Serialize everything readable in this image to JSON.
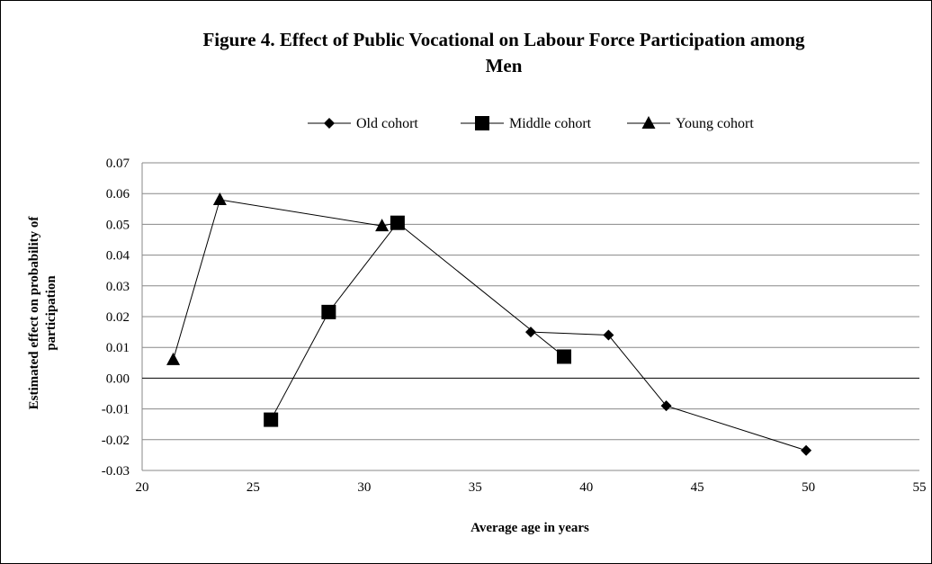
{
  "chart_data": {
    "type": "line",
    "title_line1": "Figure 4. Effect of Public Vocational on Labour Force Participation among",
    "title_line2": "Men",
    "xlabel": "Average age in years",
    "ylabel_line1": "Estimated effect on probability of",
    "ylabel_line2": "participation",
    "xlim": [
      20,
      55
    ],
    "ylim": [
      -0.03,
      0.07
    ],
    "x_ticks": [
      "20",
      "25",
      "30",
      "35",
      "40",
      "45",
      "50",
      "55"
    ],
    "y_ticks": [
      "0.07",
      "0.06",
      "0.05",
      "0.04",
      "0.03",
      "0.02",
      "0.01",
      "0.00",
      "-0.01",
      "-0.02",
      "-0.03"
    ],
    "grid": "horizontal",
    "legend_position": "top",
    "series": [
      {
        "name": "Old cohort",
        "marker": "diamond",
        "x": [
          37.5,
          41.0,
          43.6,
          49.9
        ],
        "y": [
          0.015,
          0.014,
          -0.009,
          -0.0235
        ]
      },
      {
        "name": "Middle cohort",
        "marker": "square",
        "x": [
          25.8,
          28.4,
          31.5,
          39.0
        ],
        "y": [
          -0.0135,
          0.0215,
          0.0505,
          0.007
        ]
      },
      {
        "name": "Young cohort",
        "marker": "triangle",
        "x": [
          21.4,
          23.5,
          30.8,
          31.5
        ],
        "y": [
          0.006,
          0.058,
          0.0495,
          0.0505
        ]
      }
    ],
    "line_color": "#000000",
    "marker_color": "#000000",
    "grid_color": "#888888"
  }
}
